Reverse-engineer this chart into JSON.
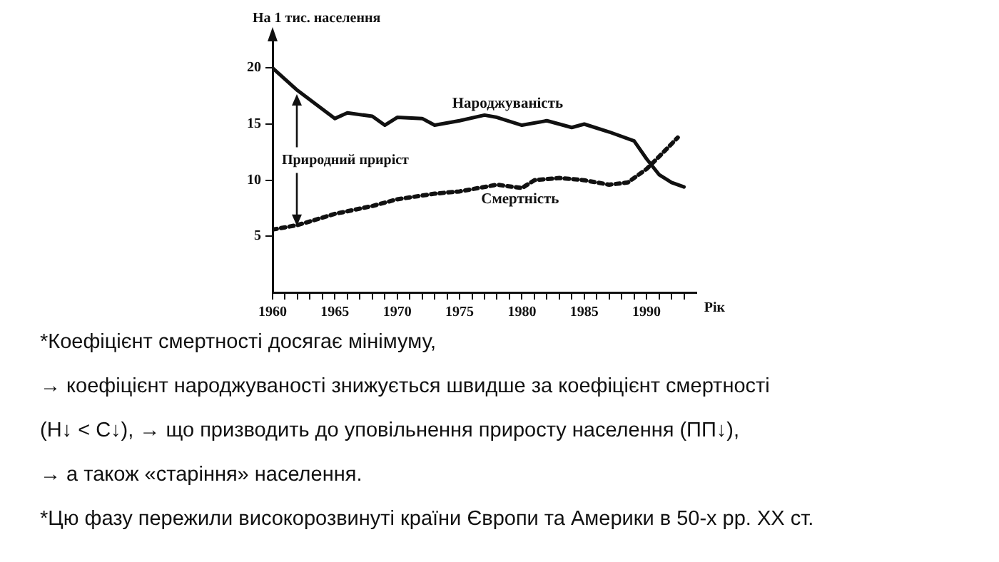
{
  "chart_data": {
    "type": "line",
    "ylabel": "На 1 тис. населення",
    "xlabel": "Рік",
    "xlim": [
      1960,
      1994
    ],
    "ylim": [
      0,
      22.5
    ],
    "xticks": [
      1960,
      {
        "value": 1961,
        "label": null
      },
      {
        "value": 1962,
        "label": null
      },
      {
        "value": 1963,
        "label": null
      },
      {
        "value": 1964,
        "label": null
      },
      1965,
      {
        "value": 1966,
        "label": null
      },
      {
        "value": 1967,
        "label": null
      },
      {
        "value": 1968,
        "label": null
      },
      {
        "value": 1969,
        "label": null
      },
      1970,
      {
        "value": 1971,
        "label": null
      },
      {
        "value": 1972,
        "label": null
      },
      {
        "value": 1973,
        "label": null
      },
      {
        "value": 1974,
        "label": null
      },
      1975,
      {
        "value": 1976,
        "label": null
      },
      {
        "value": 1977,
        "label": null
      },
      {
        "value": 1978,
        "label": null
      },
      {
        "value": 1979,
        "label": null
      },
      1980,
      {
        "value": 1981,
        "label": null
      },
      {
        "value": 1982,
        "label": null
      },
      {
        "value": 1983,
        "label": null
      },
      {
        "value": 1984,
        "label": null
      },
      1985,
      {
        "value": 1986,
        "label": null
      },
      {
        "value": 1987,
        "label": null
      },
      {
        "value": 1988,
        "label": null
      },
      {
        "value": 1989,
        "label": null
      },
      1990,
      {
        "value": 1991,
        "label": null
      },
      {
        "value": 1992,
        "label": null
      },
      {
        "value": 1993,
        "label": null
      }
    ],
    "yticks": [
      5,
      10,
      15,
      20
    ],
    "grid": false,
    "legend": false,
    "marker": "none",
    "series": [
      {
        "name": "Народжуваність",
        "color": "#111111",
        "line_style": "solid",
        "x": [
          1960,
          1962,
          1965,
          1966,
          1968,
          1969,
          1970,
          1972,
          1973,
          1975,
          1977,
          1978,
          1980,
          1982,
          1984,
          1985,
          1987,
          1989,
          1990,
          1991,
          1992,
          1993
        ],
        "values": [
          20,
          18,
          15.5,
          16,
          15.7,
          14.9,
          15.6,
          15.5,
          14.9,
          15.3,
          15.8,
          15.6,
          14.9,
          15.3,
          14.7,
          15,
          14.3,
          13.5,
          11.9,
          10.5,
          9.8,
          9.4
        ]
      },
      {
        "name": "Смертність",
        "color": "#111111",
        "line_style": "dotted",
        "x": [
          1960,
          1962,
          1965,
          1968,
          1970,
          1973,
          1975,
          1978,
          1980,
          1981,
          1983,
          1985,
          1987,
          1988.5,
          1990,
          1991,
          1992.5
        ],
        "values": [
          5.6,
          6,
          7,
          7.7,
          8.3,
          8.8,
          9,
          9.6,
          9.3,
          10,
          10.2,
          10,
          9.6,
          9.8,
          11,
          12.1,
          13.8
        ]
      }
    ],
    "annotations": [
      {
        "text": "Природний приріст",
        "x": 1962,
        "y": 6
      },
      "*Коефіцієнт смертності досягає мінімуму,",
      "→ коефіцієнт народжуваності знижується швидше за коефіцієнт смертності",
      "(Н↓ < С↓), → що призводить до уповільнення приросту населення (ПП↓),",
      "→ а також «старіння» населення.",
      "*Цю фазу пережили високорозвинуті країни Європи та Америки в 50-х рр. ХХ ст."
    ]
  }
}
